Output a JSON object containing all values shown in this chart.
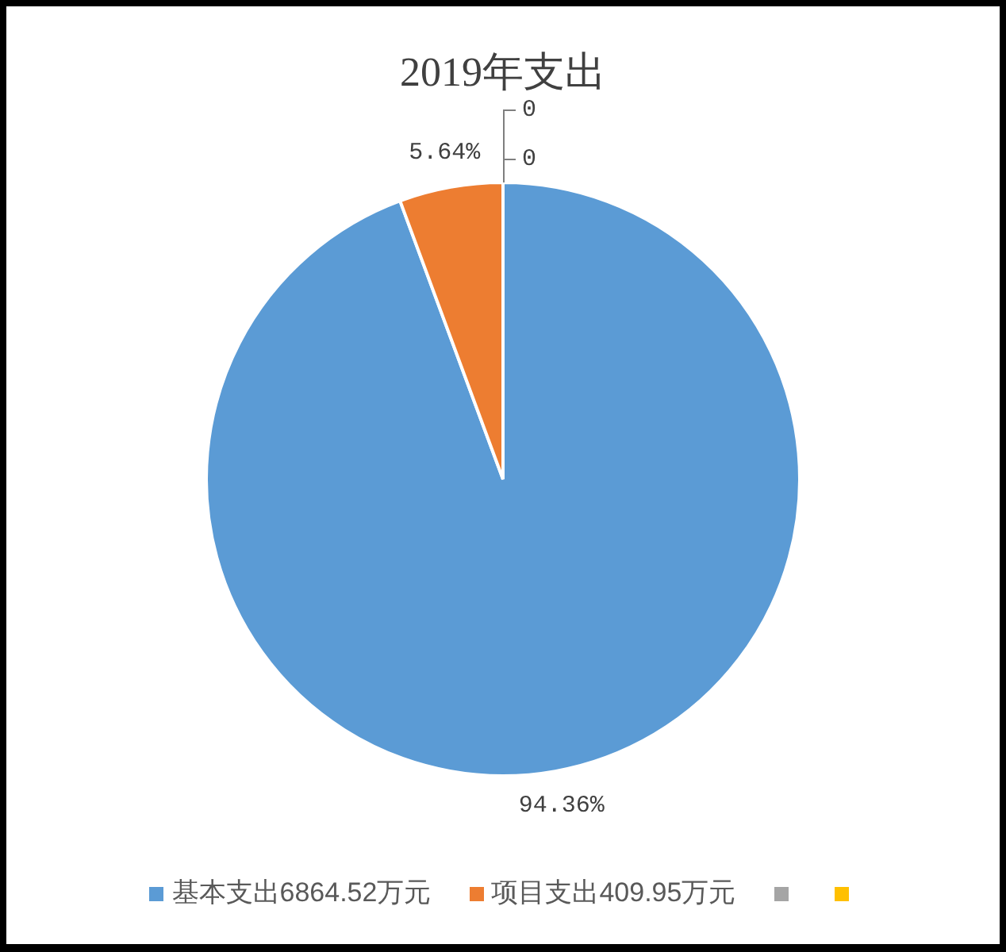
{
  "chart_data": {
    "type": "pie",
    "title": "2019年支出",
    "categories": [
      "基本支出6864.52万元",
      "项目支出409.95万元",
      null,
      null
    ],
    "values": [
      94.36,
      5.64,
      0,
      0
    ],
    "colors": [
      "#5b9bd5",
      "#ed7d31",
      "#a5a5a5",
      "#ffc000"
    ],
    "value_labels": [
      "94.36%",
      "5.64%",
      "0",
      "0"
    ],
    "legend": "bottom"
  }
}
